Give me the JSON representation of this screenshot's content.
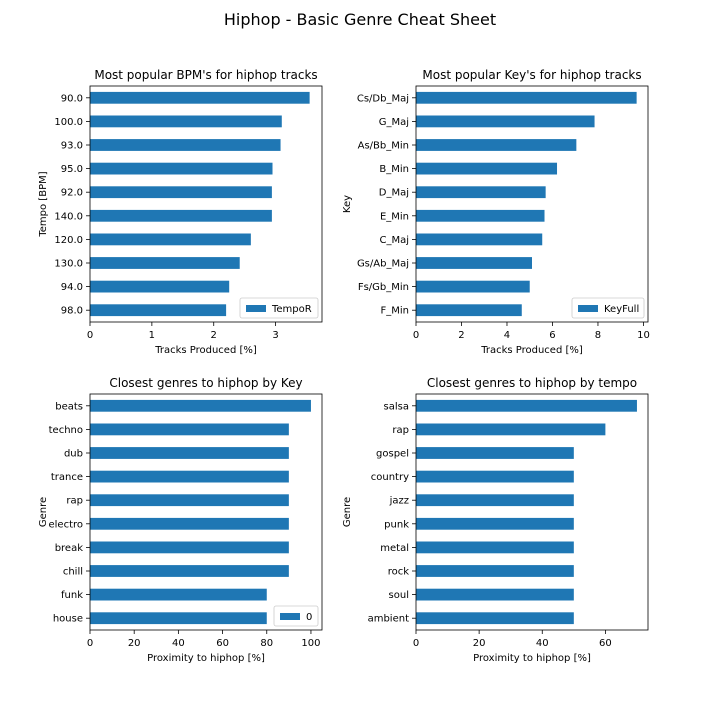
{
  "figure": {
    "suptitle": "Hiphop - Basic Genre Cheat Sheet",
    "bar_color": "#1f77b4"
  },
  "chart_data": [
    {
      "type": "bar",
      "orientation": "horizontal",
      "title": "Most popular BPM's for hiphop tracks",
      "xlabel": "Tracks Produced [%]",
      "ylabel": "Tempo [BPM]",
      "categories": [
        "90.0",
        "100.0",
        "93.0",
        "95.0",
        "92.0",
        "140.0",
        "120.0",
        "130.0",
        "94.0",
        "98.0"
      ],
      "series": [
        {
          "name": "TempoR",
          "values": [
            3.55,
            3.1,
            3.08,
            2.95,
            2.94,
            2.94,
            2.6,
            2.42,
            2.25,
            2.2
          ]
        }
      ],
      "xlim": [
        0,
        3.75
      ],
      "xticks": [
        0,
        1,
        2,
        3
      ],
      "grid": false,
      "legend": "lower right"
    },
    {
      "type": "bar",
      "orientation": "horizontal",
      "title": "Most popular Key's for hiphop tracks",
      "xlabel": "Tracks Produced [%]",
      "ylabel": "Key",
      "categories": [
        "Cs/Db_Maj",
        "G_Maj",
        "As/Bb_Min",
        "B_Min",
        "D_Maj",
        "E_Min",
        "C_Maj",
        "Gs/Ab_Maj",
        "Fs/Gb_Min",
        "F_Min"
      ],
      "series": [
        {
          "name": "KeyFull",
          "values": [
            9.7,
            7.85,
            7.05,
            6.2,
            5.7,
            5.65,
            5.55,
            5.1,
            5.0,
            4.65
          ]
        }
      ],
      "xlim": [
        0,
        10.2
      ],
      "xticks": [
        0,
        2,
        4,
        6,
        8,
        10
      ],
      "grid": false,
      "legend": "lower right"
    },
    {
      "type": "bar",
      "orientation": "horizontal",
      "title": "Closest genres to hiphop by Key",
      "xlabel": "Proximity to hiphop [%]",
      "ylabel": "Genre",
      "categories": [
        "beats",
        "techno",
        "dub",
        "trance",
        "rap",
        "electro",
        "break",
        "chill",
        "funk",
        "house"
      ],
      "series": [
        {
          "name": "0",
          "values": [
            100,
            90,
            90,
            90,
            90,
            90,
            90,
            90,
            80,
            80
          ]
        }
      ],
      "xlim": [
        0,
        105
      ],
      "xticks": [
        0,
        20,
        40,
        60,
        80,
        100
      ],
      "grid": false,
      "legend": "lower right"
    },
    {
      "type": "bar",
      "orientation": "horizontal",
      "title": "Closest genres to hiphop by tempo",
      "xlabel": "Proximity to hiphop [%]",
      "ylabel": "Genre",
      "categories": [
        "salsa",
        "rap",
        "gospel",
        "country",
        "jazz",
        "punk",
        "metal",
        "rock",
        "soul",
        "ambient"
      ],
      "series": [
        {
          "values": [
            70,
            60,
            50,
            50,
            50,
            50,
            50,
            50,
            50,
            50
          ]
        }
      ],
      "xlim": [
        0,
        73.5
      ],
      "xticks": [
        0,
        20,
        40,
        60
      ],
      "grid": false,
      "legend": "none"
    }
  ]
}
